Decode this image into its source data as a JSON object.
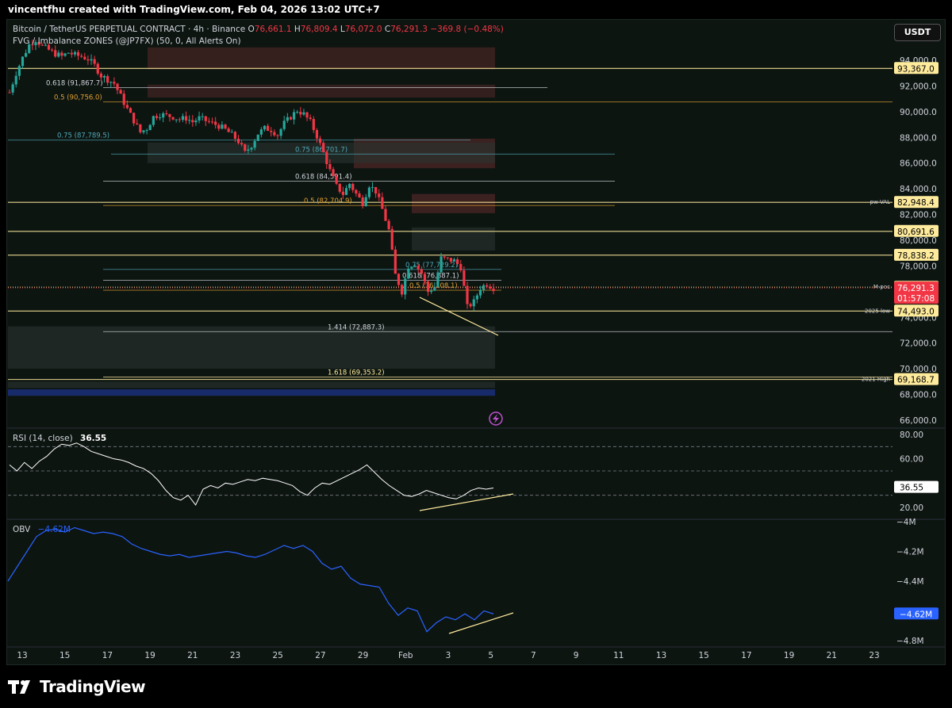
{
  "attribution": "vincentfhu created with TradingView.com, Feb 04, 2026 13:02 UTC+7",
  "header": {
    "symbol": "Bitcoin / TetherUS PERPETUAL CONTRACT · 4h · Binance",
    "open_label": "O",
    "open": "76,661.1",
    "high_label": "H",
    "high": "76,809.4",
    "low_label": "L",
    "low": "76,072.0",
    "close_label": "C",
    "close": "76,291.3",
    "change": "−369.8 (−0.48%)",
    "indicator": "FVG / Imbalance ZONES (@JP7FX) (50, 0, All Alerts On)"
  },
  "currency_button": "USDT",
  "brand": "TradingView",
  "colors": {
    "up": "#26a69a",
    "down": "#f23645",
    "fvg": "#5a2a2a",
    "fib_yellow": "#ffeb9c",
    "fib_orange": "#e0a030",
    "fib_teal": "#4fa8b8",
    "rsi": "#ffffff",
    "obv": "#2962ff"
  },
  "chart_data": [
    {
      "type": "candlestick",
      "title": "Bitcoin / TetherUS PERPETUAL CONTRACT · 4h · Binance",
      "y_axis_ticks": [
        "94,000.0",
        "92,000.0",
        "90,000.0",
        "88,000.0",
        "86,000.0",
        "84,000.0",
        "82,000.0",
        "80,000.0",
        "78,000.0",
        "76,000.0",
        "74,000.0",
        "72,000.0",
        "70,000.0",
        "68,000.0",
        "66,000.0"
      ],
      "ylim": [
        65000,
        96000
      ],
      "x_axis_ticks": [
        "13",
        "15",
        "17",
        "19",
        "21",
        "23",
        "25",
        "27",
        "29",
        "Feb",
        "3",
        "5",
        "7",
        "9",
        "11",
        "13",
        "15",
        "17",
        "19",
        "21",
        "23"
      ],
      "price_path": [
        [
          0,
          91500
        ],
        [
          2,
          93000
        ],
        [
          4,
          94200
        ],
        [
          6,
          95200
        ],
        [
          8,
          95600
        ],
        [
          10,
          95100
        ],
        [
          12,
          94800
        ],
        [
          14,
          94500
        ],
        [
          16,
          94300
        ],
        [
          18,
          94600
        ],
        [
          20,
          94400
        ],
        [
          22,
          94300
        ],
        [
          24,
          94100
        ],
        [
          26,
          93600
        ],
        [
          28,
          92800
        ],
        [
          30,
          92500
        ],
        [
          32,
          92200
        ],
        [
          34,
          91200
        ],
        [
          36,
          90200
        ],
        [
          38,
          89300
        ],
        [
          40,
          88400
        ],
        [
          42,
          88700
        ],
        [
          44,
          89600
        ],
        [
          46,
          89800
        ],
        [
          48,
          89700
        ],
        [
          50,
          89600
        ],
        [
          52,
          89400
        ],
        [
          54,
          89500
        ],
        [
          56,
          89200
        ],
        [
          58,
          89500
        ],
        [
          60,
          89300
        ],
        [
          62,
          89100
        ],
        [
          64,
          88900
        ],
        [
          66,
          88600
        ],
        [
          68,
          88200
        ],
        [
          70,
          87700
        ],
        [
          72,
          86800
        ],
        [
          74,
          87400
        ],
        [
          76,
          88300
        ],
        [
          78,
          88700
        ],
        [
          80,
          88600
        ],
        [
          82,
          88200
        ],
        [
          84,
          89100
        ],
        [
          86,
          89600
        ],
        [
          88,
          90100
        ],
        [
          90,
          89800
        ],
        [
          92,
          89200
        ],
        [
          94,
          88100
        ],
        [
          96,
          86800
        ],
        [
          98,
          85400
        ],
        [
          100,
          84200
        ],
        [
          102,
          83600
        ],
        [
          104,
          84400
        ],
        [
          106,
          83600
        ],
        [
          108,
          82900
        ],
        [
          110,
          84300
        ],
        [
          112,
          83800
        ],
        [
          114,
          82400
        ],
        [
          116,
          80800
        ],
        [
          118,
          77300
        ],
        [
          120,
          76000
        ],
        [
          122,
          78000
        ],
        [
          124,
          78200
        ],
        [
          126,
          77400
        ],
        [
          128,
          76000
        ],
        [
          130,
          76400
        ],
        [
          132,
          78600
        ],
        [
          134,
          78500
        ],
        [
          136,
          78400
        ],
        [
          138,
          77900
        ],
        [
          140,
          74800
        ],
        [
          142,
          75200
        ],
        [
          144,
          76300
        ],
        [
          146,
          76600
        ],
        [
          148,
          76291
        ]
      ],
      "fib_levels": [
        {
          "label": "0.618 (91,867.7)",
          "price": 91867.7
        },
        {
          "label": "0.5 (90,756.0)",
          "price": 90756.0
        },
        {
          "label": "0.75 (87,789.5)",
          "price": 87789.5
        },
        {
          "label": "0.75 (86,701.7)",
          "price": 86701.7
        },
        {
          "label": "0.618 (84,591.4)",
          "price": 84591.4
        },
        {
          "label": "0.5 (82,704.9)",
          "price": 82704.9
        },
        {
          "label": "0.75 (77,729.2)",
          "price": 77729.2
        },
        {
          "label": "0.618 (76,887.1)",
          "price": 76887.1
        },
        {
          "label": "0.5 (76,108.1)",
          "price": 76108.1
        },
        {
          "label": "1.414 (72,887.3)",
          "price": 72887.3
        },
        {
          "label": "1.618 (69,353.2)",
          "price": 69353.2
        }
      ],
      "horizontal_levels": [
        {
          "price_label": "93,367.0",
          "price": 93367.0,
          "tag": ""
        },
        {
          "price_label": "82,948.4",
          "price": 82948.4,
          "tag": "pw-VAL"
        },
        {
          "price_label": "80,691.6",
          "price": 80691.6,
          "tag": ""
        },
        {
          "price_label": "78,838.2",
          "price": 78838.2,
          "tag": ""
        },
        {
          "price_label": "76,346.8",
          "price": 76346.8,
          "tag": "M-poc"
        },
        {
          "price_label": "74,493.0",
          "price": 74493.0,
          "tag": "2025 low"
        },
        {
          "price_label": "69,168.7",
          "price": 69168.7,
          "tag": "2021 High"
        }
      ],
      "current_price": "76,291.3",
      "countdown": "01:57:08"
    },
    {
      "type": "line",
      "name": "RSI",
      "legend": "RSI (14, close)",
      "last_value": "36.55",
      "y_axis_ticks": [
        "80.00",
        "60.00",
        "20.00"
      ],
      "ylim": [
        15,
        85
      ],
      "values": [
        55,
        50,
        57,
        52,
        58,
        62,
        68,
        72,
        71,
        73,
        70,
        66,
        64,
        62,
        60,
        59,
        57,
        54,
        52,
        48,
        42,
        34,
        28,
        26,
        30,
        22,
        35,
        38,
        36,
        40,
        39,
        41,
        43,
        42,
        44,
        43,
        42,
        40,
        38,
        33,
        30,
        36,
        40,
        39,
        42,
        45,
        48,
        51,
        55,
        49,
        43,
        38,
        34,
        30,
        29,
        31,
        34,
        32,
        30,
        28,
        27,
        30,
        34,
        36,
        35,
        36
      ]
    },
    {
      "type": "line",
      "name": "OBV",
      "legend": "OBV",
      "last_value": "−4.62M",
      "y_axis_ticks": [
        "−4M",
        "−4.2M",
        "−4.4M",
        "−4.62M",
        "−4.8M"
      ],
      "ylim": [
        -4.85,
        -3.98
      ],
      "values": [
        -4.4,
        -4.3,
        -4.2,
        -4.1,
        -4.06,
        -4.05,
        -4.07,
        -4.04,
        -4.06,
        -4.08,
        -4.07,
        -4.08,
        -4.1,
        -4.15,
        -4.18,
        -4.2,
        -4.22,
        -4.23,
        -4.22,
        -4.24,
        -4.23,
        -4.22,
        -4.21,
        -4.2,
        -4.21,
        -4.23,
        -4.24,
        -4.22,
        -4.19,
        -4.16,
        -4.18,
        -4.16,
        -4.2,
        -4.28,
        -4.32,
        -4.3,
        -4.38,
        -4.42,
        -4.43,
        -4.44,
        -4.55,
        -4.63,
        -4.58,
        -4.6,
        -4.74,
        -4.68,
        -4.64,
        -4.66,
        -4.62,
        -4.66,
        -4.6,
        -4.62
      ]
    }
  ]
}
